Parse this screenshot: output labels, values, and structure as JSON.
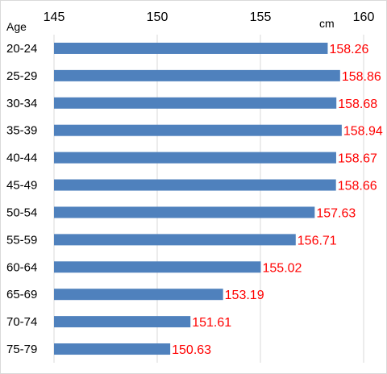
{
  "chart_data": {
    "type": "bar",
    "orientation": "horizontal",
    "title": "",
    "ylabel": "Age",
    "xlabel": "cm",
    "x_axis_position": "top",
    "xlim": [
      145,
      160
    ],
    "xticks": [
      "145",
      "150",
      "155",
      "160"
    ],
    "grid": true,
    "legend": "none",
    "categories": [
      "20-24",
      "25-29",
      "30-34",
      "35-39",
      "40-44",
      "45-49",
      "50-54",
      "55-59",
      "60-64",
      "65-69",
      "70-74",
      "75-79"
    ],
    "values": [
      158.26,
      158.86,
      158.68,
      158.94,
      158.67,
      158.66,
      157.63,
      156.71,
      155.02,
      153.19,
      151.61,
      150.63
    ],
    "data_labels": [
      "158.26",
      "158.86",
      "158.68",
      "158.94",
      "158.67",
      "158.66",
      "157.63",
      "156.71",
      "155.02",
      "153.19",
      "151.61",
      "150.63"
    ],
    "colors": {
      "bar": "#4f81bd",
      "data_label": "#ff0000",
      "grid": "#d9d9d9"
    }
  }
}
